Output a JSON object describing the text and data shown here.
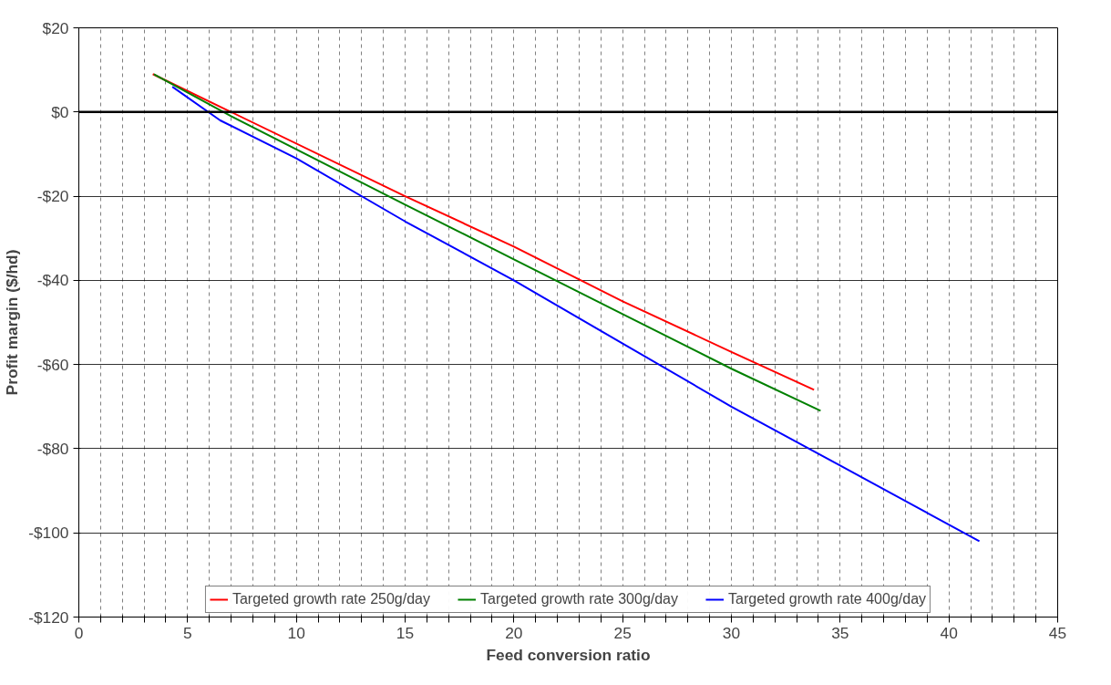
{
  "chart_data": {
    "type": "line",
    "xlabel": "Feed conversion ratio",
    "ylabel": "Profit margin ($/hd)",
    "series": [
      {
        "name": "Targeted growth rate 250g/day",
        "color": "#ff0000",
        "x": [
          3.4,
          7,
          15,
          20,
          25,
          30,
          33.8
        ],
        "values": [
          9,
          0,
          -20,
          -32,
          -45,
          -57,
          -66
        ]
      },
      {
        "name": "Targeted growth rate 300g/day",
        "color": "#008000",
        "x": [
          3.45,
          7,
          15,
          20,
          25,
          30,
          34.1
        ],
        "values": [
          9,
          -1,
          -22,
          -35,
          -48,
          -61,
          -71
        ]
      },
      {
        "name": "Targeted growth rate 400g/day",
        "color": "#0000ff",
        "x": [
          4.3,
          6.5,
          10,
          15,
          20,
          25,
          30,
          35,
          41.4
        ],
        "values": [
          6,
          -2,
          -11,
          -26,
          -40,
          -55,
          -70,
          -84,
          -102
        ]
      }
    ],
    "xlim": [
      0,
      45
    ],
    "ylim": [
      -120,
      20
    ],
    "xticks": [
      0,
      {
        "value": 1,
        "label": null
      },
      {
        "value": 2,
        "label": null
      },
      {
        "value": 3,
        "label": null
      },
      {
        "value": 4,
        "label": null
      },
      5,
      {
        "value": 6,
        "label": null
      },
      {
        "value": 7,
        "label": null
      },
      {
        "value": 8,
        "label": null
      },
      {
        "value": 9,
        "label": null
      },
      10,
      {
        "value": 11,
        "label": null
      },
      {
        "value": 12,
        "label": null
      },
      {
        "value": 13,
        "label": null
      },
      {
        "value": 14,
        "label": null
      },
      15,
      {
        "value": 16,
        "label": null
      },
      {
        "value": 17,
        "label": null
      },
      {
        "value": 18,
        "label": null
      },
      {
        "value": 19,
        "label": null
      },
      20,
      {
        "value": 21,
        "label": null
      },
      {
        "value": 22,
        "label": null
      },
      {
        "value": 23,
        "label": null
      },
      {
        "value": 24,
        "label": null
      },
      25,
      {
        "value": 26,
        "label": null
      },
      {
        "value": 27,
        "label": null
      },
      {
        "value": 28,
        "label": null
      },
      {
        "value": 29,
        "label": null
      },
      30,
      {
        "value": 31,
        "label": null
      },
      {
        "value": 32,
        "label": null
      },
      {
        "value": 33,
        "label": null
      },
      {
        "value": 34,
        "label": null
      },
      35,
      {
        "value": 36,
        "label": null
      },
      {
        "value": 37,
        "label": null
      },
      {
        "value": 38,
        "label": null
      },
      {
        "value": 39,
        "label": null
      },
      40,
      {
        "value": 41,
        "label": null
      },
      {
        "value": 42,
        "label": null
      },
      {
        "value": 43,
        "label": null
      },
      {
        "value": 44,
        "label": null
      },
      45
    ],
    "yticks": [
      {
        "value": 20,
        "label": "$20"
      },
      {
        "value": 0,
        "label": "$0"
      },
      {
        "value": -20,
        "label": "-$20"
      },
      {
        "value": -40,
        "label": "-$40"
      },
      {
        "value": -60,
        "label": "-$60"
      },
      {
        "value": -80,
        "label": "-$80"
      },
      {
        "value": -100,
        "label": "-$100"
      },
      {
        "value": -120,
        "label": "-$120"
      }
    ],
    "ref_lines": [
      {
        "axis": "y",
        "value": 0,
        "color": "#000000"
      }
    ],
    "grid": true,
    "legend": "bottom",
    "marker": "none",
    "line_style": "solid"
  }
}
